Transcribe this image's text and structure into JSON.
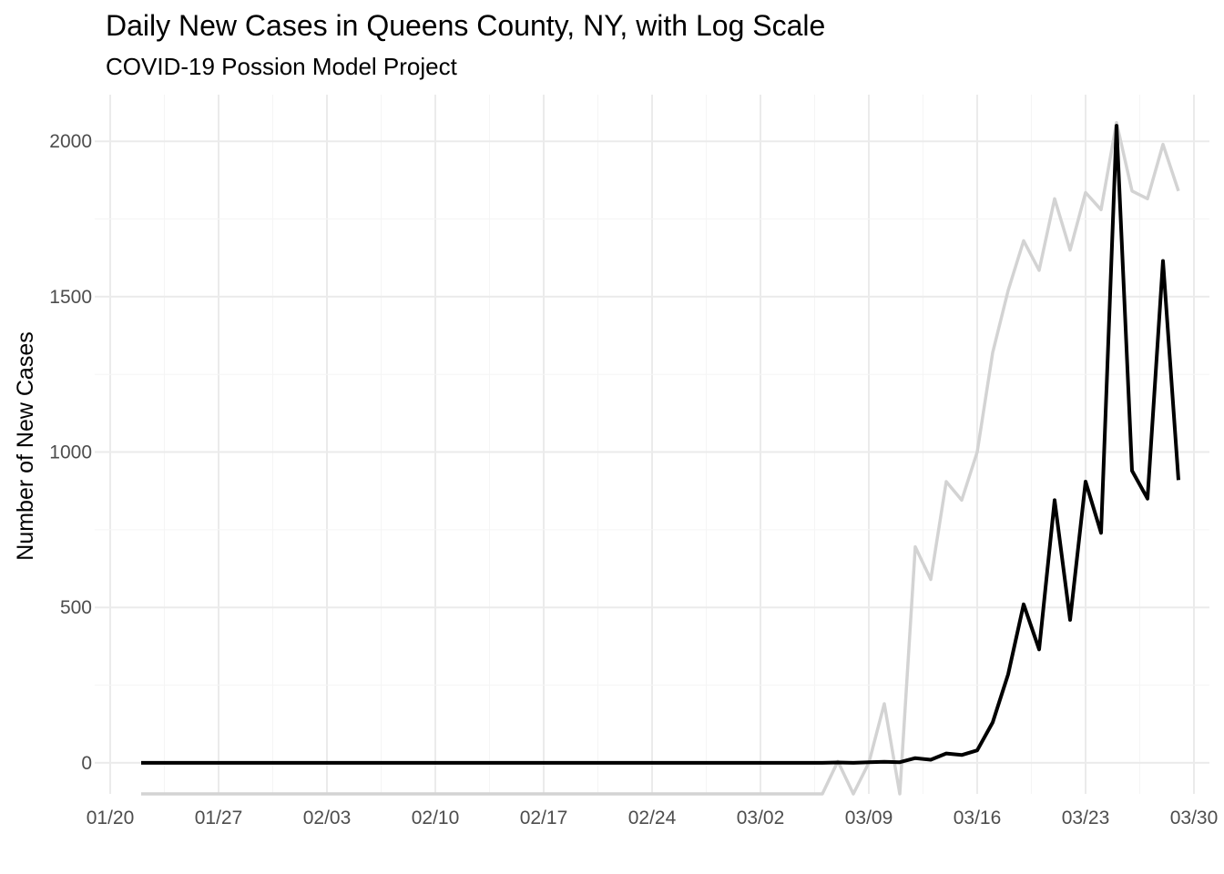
{
  "chart_data": {
    "type": "line",
    "title": "Daily New Cases in Queens County, NY, with Log Scale",
    "subtitle": "COVID-19 Possion Model Project",
    "xlabel": "",
    "ylabel": "Number of New Cases",
    "x_start": "2020-01-22",
    "xlim": [
      "2020-01-19",
      "2020-03-31"
    ],
    "ylim": [
      -100,
      2150
    ],
    "x_ticks": [
      "01/20",
      "01/27",
      "02/03",
      "02/10",
      "02/17",
      "02/24",
      "03/02",
      "03/09",
      "03/16",
      "03/23",
      "03/30"
    ],
    "y_ticks": [
      0,
      500,
      1000,
      1500,
      2000
    ],
    "grid": true,
    "legend": "none",
    "series": [
      {
        "color": "#d3d3d3",
        "values": [
          -100,
          -100,
          -100,
          -100,
          -100,
          -100,
          -100,
          -100,
          -100,
          -100,
          -100,
          -100,
          -100,
          -100,
          -100,
          -100,
          -100,
          -100,
          -100,
          -100,
          -100,
          -100,
          -100,
          -100,
          -100,
          -100,
          -100,
          -100,
          -100,
          -100,
          -100,
          -100,
          -100,
          -100,
          -100,
          -100,
          -100,
          -100,
          -100,
          -100,
          -100,
          -100,
          -100,
          -100,
          -100,
          5,
          -100,
          0,
          190,
          -100,
          695,
          590,
          905,
          845,
          1000,
          1320,
          1520,
          1680,
          1585,
          1815,
          1650,
          1835,
          1780,
          2060,
          1840,
          1815,
          1990,
          1840
        ]
      },
      {
        "color": "#000000",
        "values": [
          0,
          0,
          0,
          0,
          0,
          0,
          0,
          0,
          0,
          0,
          0,
          0,
          0,
          0,
          0,
          0,
          0,
          0,
          0,
          0,
          0,
          0,
          0,
          0,
          0,
          0,
          0,
          0,
          0,
          0,
          0,
          0,
          0,
          0,
          0,
          0,
          0,
          0,
          0,
          0,
          0,
          0,
          0,
          0,
          0,
          1,
          0,
          2,
          3,
          2,
          15,
          10,
          30,
          25,
          40,
          130,
          285,
          510,
          365,
          845,
          460,
          905,
          740,
          2050,
          940,
          850,
          1615,
          910
        ]
      }
    ]
  }
}
